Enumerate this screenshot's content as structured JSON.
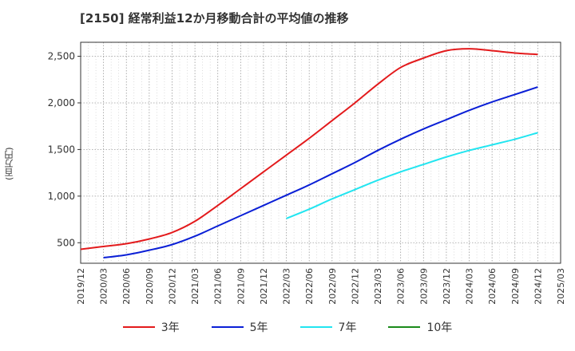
{
  "title": "[2150]  経常利益12か月移動合計の平均値の推移",
  "y_unit": "(百万円)",
  "chart_data": {
    "type": "line",
    "title": "[2150]  経常利益12か月移動合計の平均値の推移",
    "ylabel": "(百万円)",
    "xlabel": "",
    "x_ticks": [
      "2019/12",
      "2020/03",
      "2020/06",
      "2020/09",
      "2020/12",
      "2021/03",
      "2021/06",
      "2021/09",
      "2021/12",
      "2022/03",
      "2022/06",
      "2022/09",
      "2022/12",
      "2023/03",
      "2023/06",
      "2023/09",
      "2023/12",
      "2024/03",
      "2024/06",
      "2024/09",
      "2024/12",
      "2025/03"
    ],
    "y_ticks": [
      500,
      1000,
      1500,
      2000,
      2500
    ],
    "y_tick_labels": [
      "500",
      "1,000",
      "1,500",
      "2,000",
      "2,500"
    ],
    "ylim": [
      280,
      2650
    ],
    "grid": true,
    "legend_position": "bottom",
    "series": [
      {
        "name": "3年",
        "color": "#e31a1c",
        "x": [
          "2019/12",
          "2020/03",
          "2020/06",
          "2020/09",
          "2020/12",
          "2021/03",
          "2021/06",
          "2021/09",
          "2021/12",
          "2022/03",
          "2022/06",
          "2022/09",
          "2022/12",
          "2023/03",
          "2023/06",
          "2023/09",
          "2023/12",
          "2024/03",
          "2024/06",
          "2024/09",
          "2024/12"
        ],
        "values": [
          430,
          460,
          490,
          540,
          610,
          730,
          900,
          1080,
          1260,
          1440,
          1620,
          1810,
          2000,
          2200,
          2380,
          2480,
          2560,
          2580,
          2560,
          2535,
          2520
        ]
      },
      {
        "name": "5年",
        "color": "#0a1fd6",
        "x": [
          "2020/03",
          "2020/06",
          "2020/09",
          "2020/12",
          "2021/03",
          "2021/06",
          "2021/09",
          "2021/12",
          "2022/03",
          "2022/06",
          "2022/09",
          "2022/12",
          "2023/03",
          "2023/06",
          "2023/09",
          "2023/12",
          "2024/03",
          "2024/06",
          "2024/09",
          "2024/12"
        ],
        "values": [
          340,
          370,
          420,
          480,
          570,
          680,
          790,
          900,
          1010,
          1120,
          1240,
          1360,
          1490,
          1610,
          1720,
          1820,
          1920,
          2010,
          2090,
          2170
        ]
      },
      {
        "name": "7年",
        "color": "#22e5f0",
        "x": [
          "2022/03",
          "2022/06",
          "2022/09",
          "2022/12",
          "2023/03",
          "2023/06",
          "2023/09",
          "2023/12",
          "2024/03",
          "2024/06",
          "2024/09",
          "2024/12"
        ],
        "values": [
          760,
          860,
          970,
          1070,
          1170,
          1260,
          1340,
          1420,
          1490,
          1550,
          1610,
          1680
        ]
      },
      {
        "name": "10年",
        "color": "#1a8a1a",
        "x": [],
        "values": []
      }
    ]
  }
}
